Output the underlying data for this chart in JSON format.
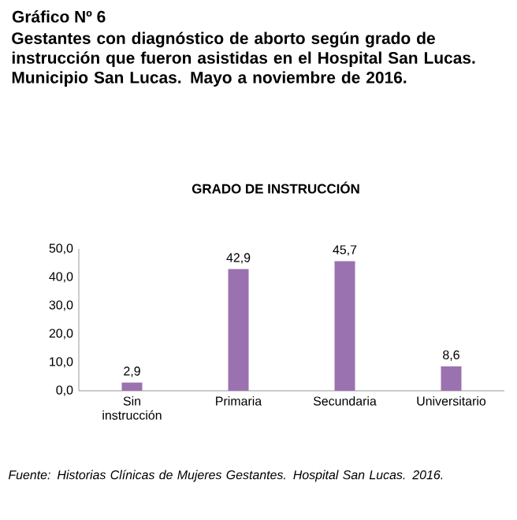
{
  "chart_data": {
    "type": "bar",
    "title": "Gráfico Nº 6",
    "subtitle": "Gestantes con diagnóstico de aborto según grado de instrucción que fueron asistidas en el Hospital San Lucas. Municipio San Lucas. Mayo a noviembre de 2016.",
    "annotations": [
      "GRADO DE INSTRUCCIÓN",
      "Fuente: Historias Clínicas de Mujeres Gestantes. Hospital San Lucas. 2016."
    ],
    "categories": [
      "Sin instrucción",
      "Primaria",
      "Secundaria",
      "Universitario"
    ],
    "values": [
      2.9,
      42.9,
      45.7,
      8.6
    ],
    "value_labels": [
      "2,9",
      "42,9",
      "45,7",
      "8,6"
    ],
    "color": "#9b72b0",
    "ylim": [
      0,
      50
    ],
    "yticks": [
      {
        "value": 0,
        "label": "0,0"
      },
      {
        "value": 10,
        "label": "10,0"
      },
      {
        "value": 20,
        "label": "20,0"
      },
      {
        "value": 30,
        "label": "30,0"
      },
      {
        "value": 40,
        "label": "40,0"
      },
      {
        "value": 50,
        "label": "50,0"
      }
    ],
    "grid": false
  }
}
